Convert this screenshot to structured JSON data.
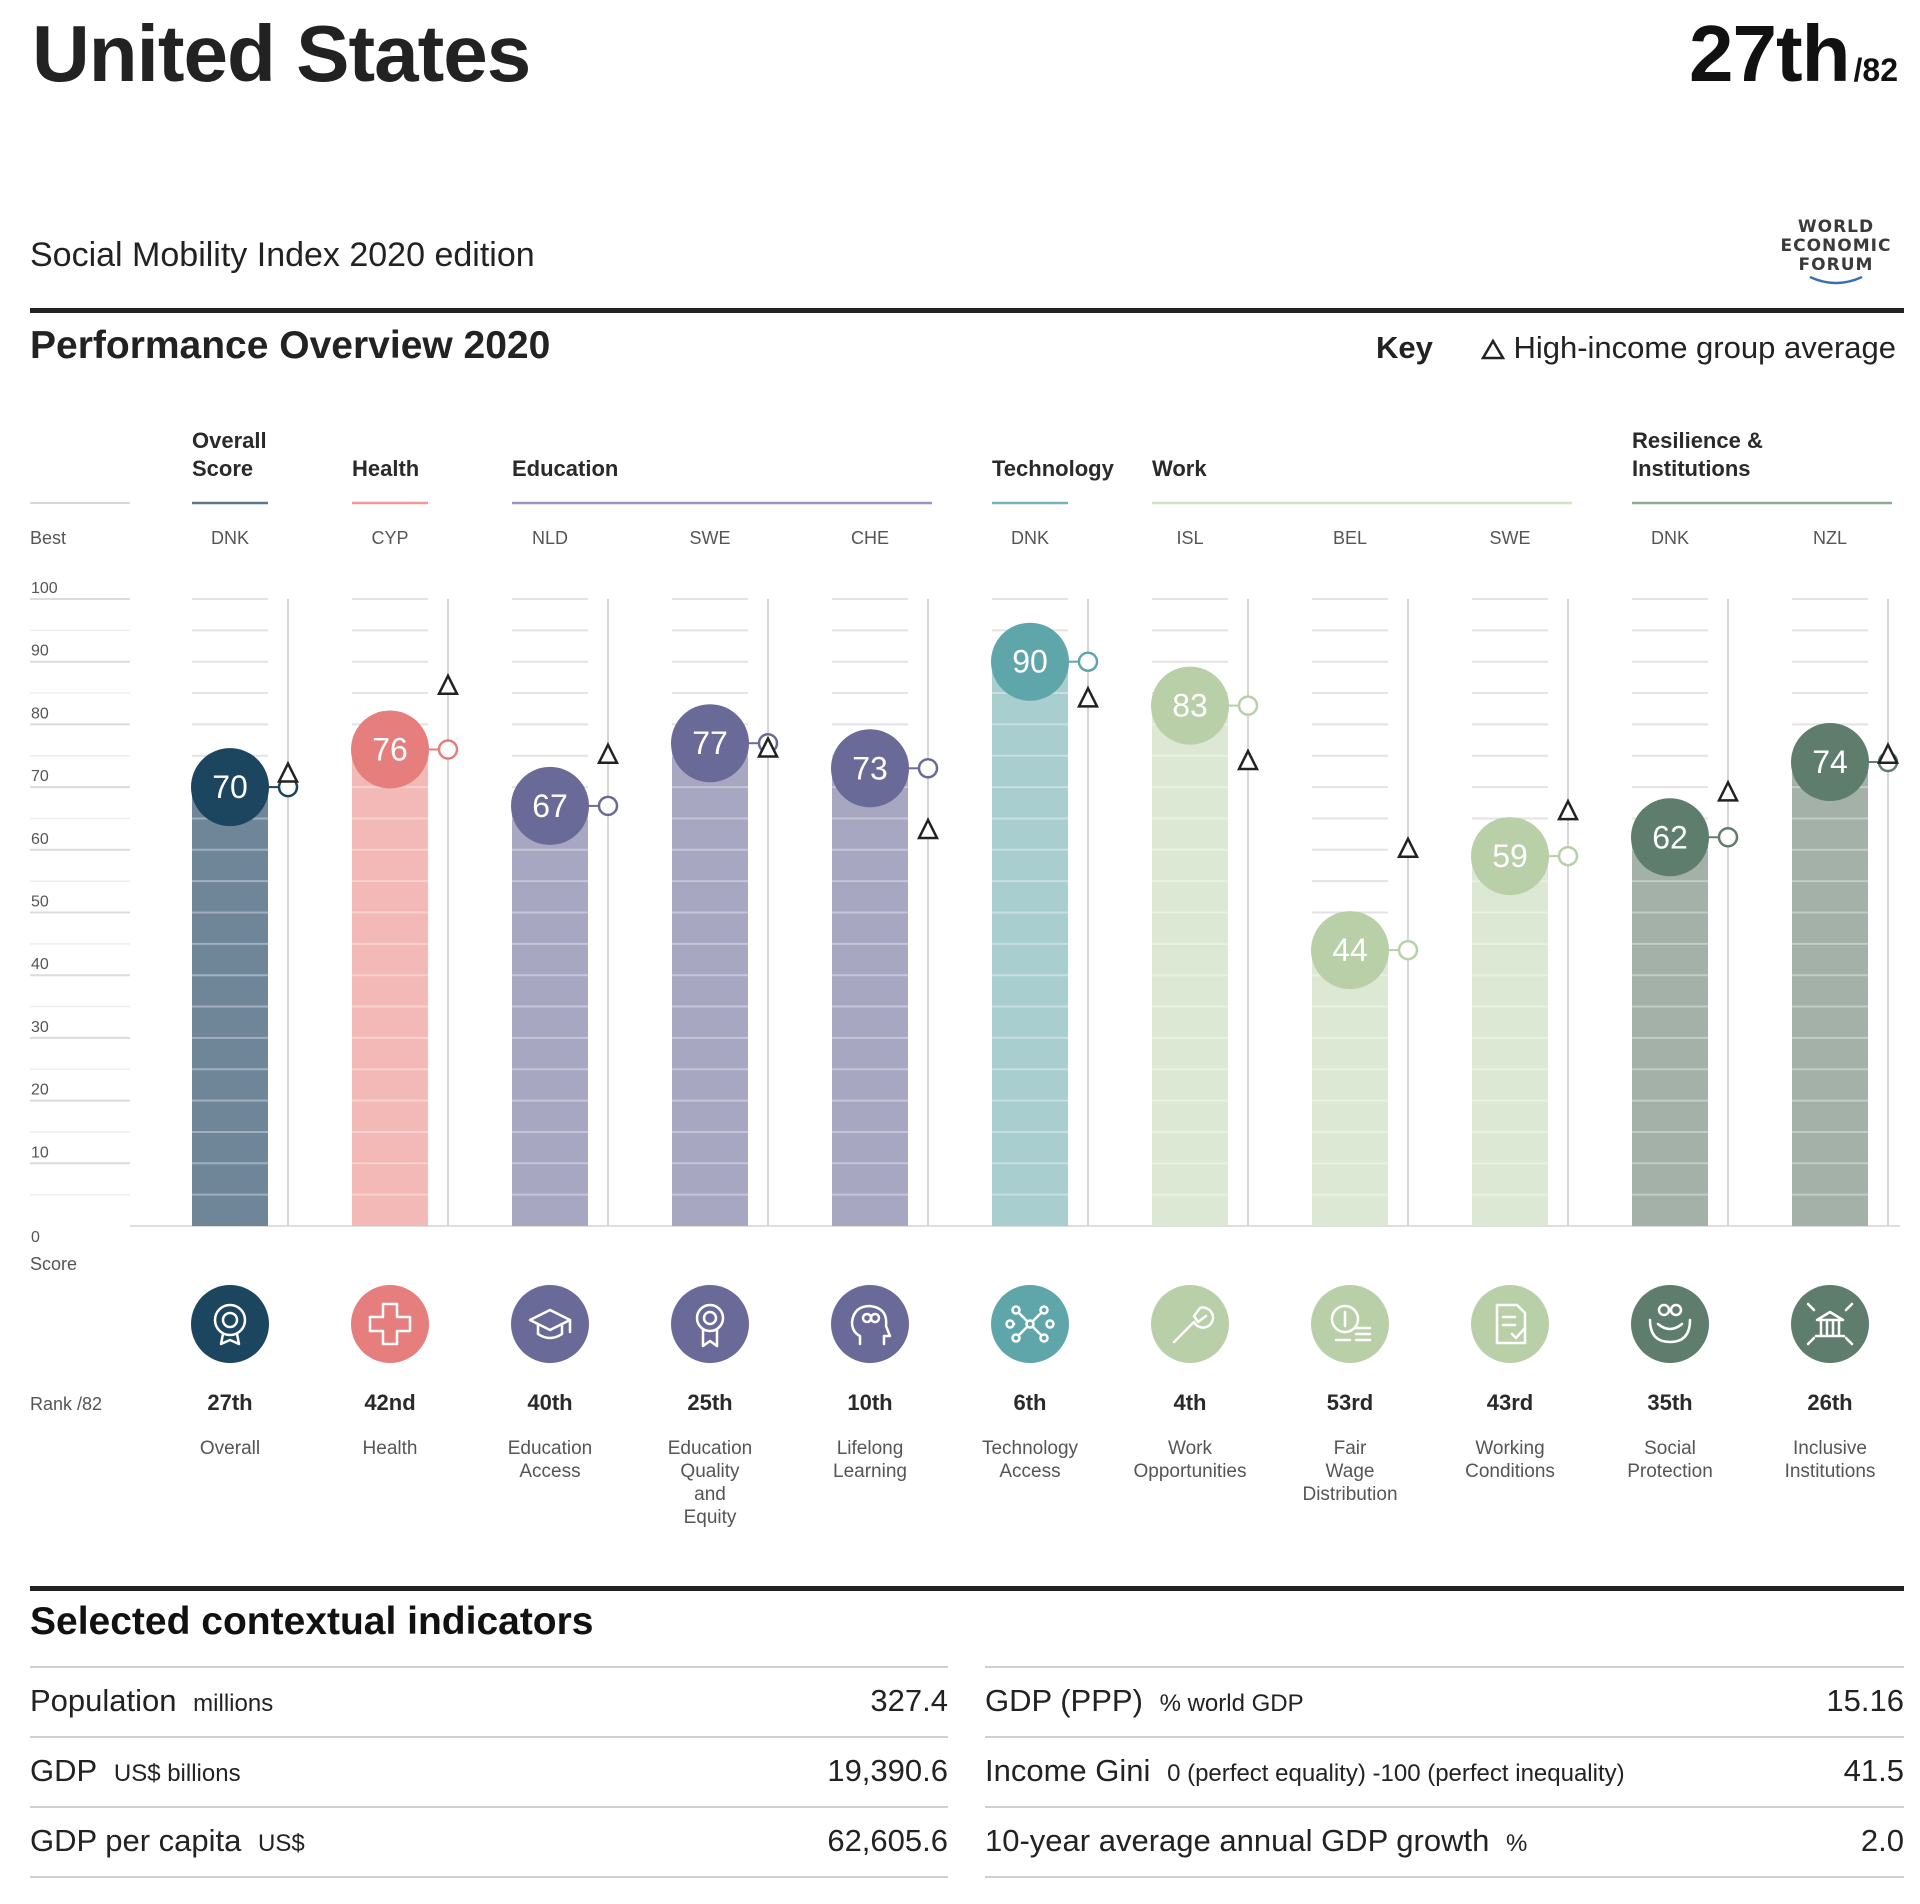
{
  "header": {
    "country": "United States",
    "rank": "27th",
    "rank_of": "/82",
    "subtitle": "Social Mobility Index 2020 edition",
    "logo": [
      "WORLD",
      "ECONOMIC",
      "FORUM"
    ]
  },
  "overview": {
    "title": "Performance Overview 2020",
    "key_label": "Key",
    "key_item": "High-income group average",
    "best_label": "Best",
    "score_label": "Score",
    "rank_label": "Rank /82"
  },
  "chart_data": {
    "type": "bar",
    "title": "Performance Overview 2020",
    "ylabel": "Score",
    "ylim": [
      0,
      100
    ],
    "yticks": [
      0,
      10,
      20,
      30,
      40,
      50,
      60,
      70,
      80,
      90,
      100
    ],
    "groups": [
      {
        "label": "Overall Score",
        "lines": [
          "Overall",
          "Score"
        ],
        "span": [
          0,
          0
        ],
        "color": "#5a7890"
      },
      {
        "label": "Health",
        "lines": [
          "Health"
        ],
        "span": [
          1,
          1
        ],
        "color": "#ee9a98"
      },
      {
        "label": "Education",
        "lines": [
          "Education"
        ],
        "span": [
          2,
          4
        ],
        "color": "#9a96c0"
      },
      {
        "label": "Technology",
        "lines": [
          "Technology"
        ],
        "span": [
          5,
          5
        ],
        "color": "#74b4b8"
      },
      {
        "label": "Work",
        "lines": [
          "Work"
        ],
        "span": [
          6,
          8
        ],
        "color": "#d4e3c5"
      },
      {
        "label": "Resilience & Institutions",
        "lines": [
          "Resilience &",
          "Institutions"
        ],
        "span": [
          9,
          10
        ],
        "color": "#8fa898"
      }
    ],
    "series": [
      {
        "name": "Score",
        "values": [
          70,
          76,
          67,
          77,
          73,
          90,
          83,
          44,
          59,
          62,
          74
        ]
      },
      {
        "name": "High-income group average",
        "values": [
          72,
          86,
          75,
          76,
          63,
          84,
          74,
          60,
          66,
          69,
          75
        ]
      }
    ],
    "pillars": [
      {
        "best": "DNK",
        "score": 70,
        "rank": "27th",
        "label": [
          "Overall"
        ],
        "icon": "award-medal-icon",
        "circle": "#1c4560",
        "bar": "#6f8699",
        "text": "#ffffff"
      },
      {
        "best": "CYP",
        "score": 76,
        "rank": "42nd",
        "label": [
          "Health"
        ],
        "icon": "health-cross-icon",
        "circle": "#e57e7c",
        "bar": "#f2b9b7",
        "text": "#ffffff"
      },
      {
        "best": "NLD",
        "score": 67,
        "rank": "40th",
        "label": [
          "Education",
          "Access"
        ],
        "icon": "graduation-cap-icon",
        "circle": "#6a6a98",
        "bar": "#a7a7c2",
        "text": "#ffffff"
      },
      {
        "best": "SWE",
        "score": 77,
        "rank": "25th",
        "label": [
          "Education",
          "Quality",
          "and",
          "Equity"
        ],
        "icon": "ribbon-award-icon",
        "circle": "#6a6a98",
        "bar": "#a7a7c2",
        "text": "#ffffff"
      },
      {
        "best": "CHE",
        "score": 73,
        "rank": "10th",
        "label": [
          "Lifelong",
          "Learning"
        ],
        "icon": "brain-head-icon",
        "circle": "#6a6a98",
        "bar": "#a7a7c2",
        "text": "#ffffff"
      },
      {
        "best": "DNK",
        "score": 90,
        "rank": "6th",
        "label": [
          "Technology",
          "Access"
        ],
        "icon": "circuit-network-icon",
        "circle": "#5fa6aa",
        "bar": "#a9cecf",
        "text": "#ffffff"
      },
      {
        "best": "ISL",
        "score": 83,
        "rank": "4th",
        "label": [
          "Work",
          "Opportunities"
        ],
        "icon": "wrench-icon",
        "circle": "#b8cfa8",
        "bar": "#dde8d4",
        "text": "#ffffff"
      },
      {
        "best": "BEL",
        "score": 44,
        "rank": "53rd",
        "label": [
          "Fair",
          "Wage",
          "Distribution"
        ],
        "icon": "coin-stack-icon",
        "circle": "#b8cfa8",
        "bar": "#dde8d4",
        "text": "#ffffff"
      },
      {
        "best": "SWE",
        "score": 59,
        "rank": "43rd",
        "label": [
          "Working",
          "Conditions"
        ],
        "icon": "document-check-icon",
        "circle": "#b8cfa8",
        "bar": "#dde8d4",
        "text": "#ffffff"
      },
      {
        "best": "DNK",
        "score": 62,
        "rank": "35th",
        "label": [
          "Social",
          "Protection"
        ],
        "icon": "hands-people-icon",
        "circle": "#5f7d6c",
        "bar": "#a3b1a8",
        "text": "#ffffff"
      },
      {
        "best": "NZL",
        "score": 74,
        "rank": "26th",
        "label": [
          "Inclusive",
          "Institutions"
        ],
        "icon": "institution-building-icon",
        "circle": "#5f7d6c",
        "bar": "#a3b1a8",
        "text": "#ffffff"
      }
    ]
  },
  "context": {
    "title": "Selected contextual indicators",
    "left": [
      {
        "name": "Population",
        "unit": "millions",
        "value": "327.4"
      },
      {
        "name": "GDP",
        "unit": "US$ billions",
        "value": "19,390.6"
      },
      {
        "name": "GDP per capita",
        "unit": "US$",
        "value": "62,605.6"
      }
    ],
    "right": [
      {
        "name": "GDP (PPP)",
        "unit": "% world GDP",
        "value": "15.16"
      },
      {
        "name": "Income Gini",
        "unit": "0 (perfect equality) -100 (perfect inequality)",
        "value": "41.5"
      },
      {
        "name": "10-year average annual GDP growth",
        "unit": "%",
        "value": "2.0"
      }
    ]
  }
}
